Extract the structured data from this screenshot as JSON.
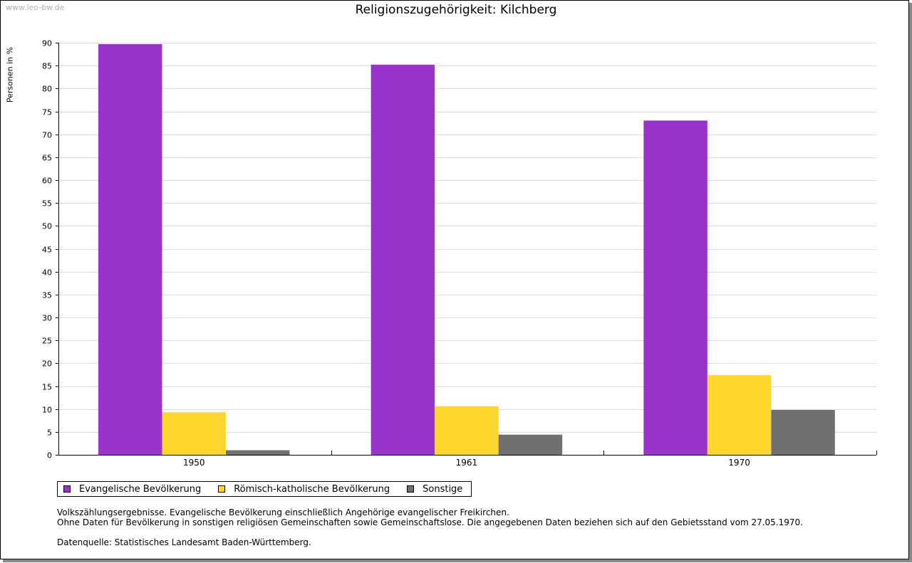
{
  "watermark": "www.leo-bw.de",
  "chart_data": {
    "type": "bar",
    "title": "Religionszugehörigkeit: Kilchberg",
    "xlabel": "",
    "ylabel": "Personen in %",
    "ylim": [
      0,
      90
    ],
    "ytick_step": 5,
    "grid": true,
    "categories": [
      "1950",
      "1961",
      "1970"
    ],
    "series": [
      {
        "name": "Evangelische Bevölkerung",
        "color": "#9933cc",
        "values": [
          89.7,
          85.2,
          73.0
        ]
      },
      {
        "name": "Römisch-katholische Bevölkerung",
        "color": "#fdd72e",
        "values": [
          9.3,
          10.6,
          17.4
        ]
      },
      {
        "name": "Sonstige",
        "color": "#707070",
        "values": [
          1.0,
          4.4,
          9.8
        ]
      }
    ]
  },
  "notes": {
    "line1": "Volkszählungsergebnisse. Evangelische Bevölkerung einschließlich Angehörige evangelischer Freikirchen.",
    "line2": "Ohne Daten für Bevölkerung in sonstigen religiösen Gemeinschaften sowie Gemeinschaftslose. Die angegebenen Daten beziehen sich auf den Gebietsstand vom 27.05.1970.",
    "source": "Datenquelle: Statistisches Landesamt Baden-Württemberg."
  }
}
